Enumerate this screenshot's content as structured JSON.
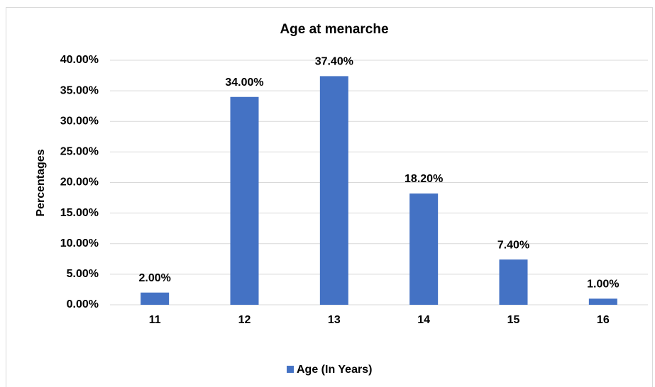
{
  "chart_data": {
    "type": "bar",
    "title": "Age at menarche",
    "y_label": "Percentages",
    "categories": [
      "11",
      "12",
      "13",
      "14",
      "15",
      "16"
    ],
    "series": [
      {
        "name": "Age (In Years)",
        "color": "#4472c4",
        "values": [
          2,
          34,
          37.4,
          18.2,
          7.4,
          1
        ],
        "value_labels": [
          "2.00%",
          "34.00%",
          "37.40%",
          "18.20%",
          "7.40%",
          "1.00%"
        ]
      }
    ],
    "ylim": [
      0,
      40
    ],
    "yticks": [
      {
        "value": 0,
        "label": "0.00%"
      },
      {
        "value": 5,
        "label": "5.00%"
      },
      {
        "value": 10,
        "label": "10.00%"
      },
      {
        "value": 15,
        "label": "15.00%"
      },
      {
        "value": 20,
        "label": "20.00%"
      },
      {
        "value": 25,
        "label": "25.00%"
      },
      {
        "value": 30,
        "label": "30.00%"
      },
      {
        "value": 35,
        "label": "35.00%"
      },
      {
        "value": 40,
        "label": "40.00%"
      }
    ],
    "grid": true,
    "legend": "bottom"
  }
}
